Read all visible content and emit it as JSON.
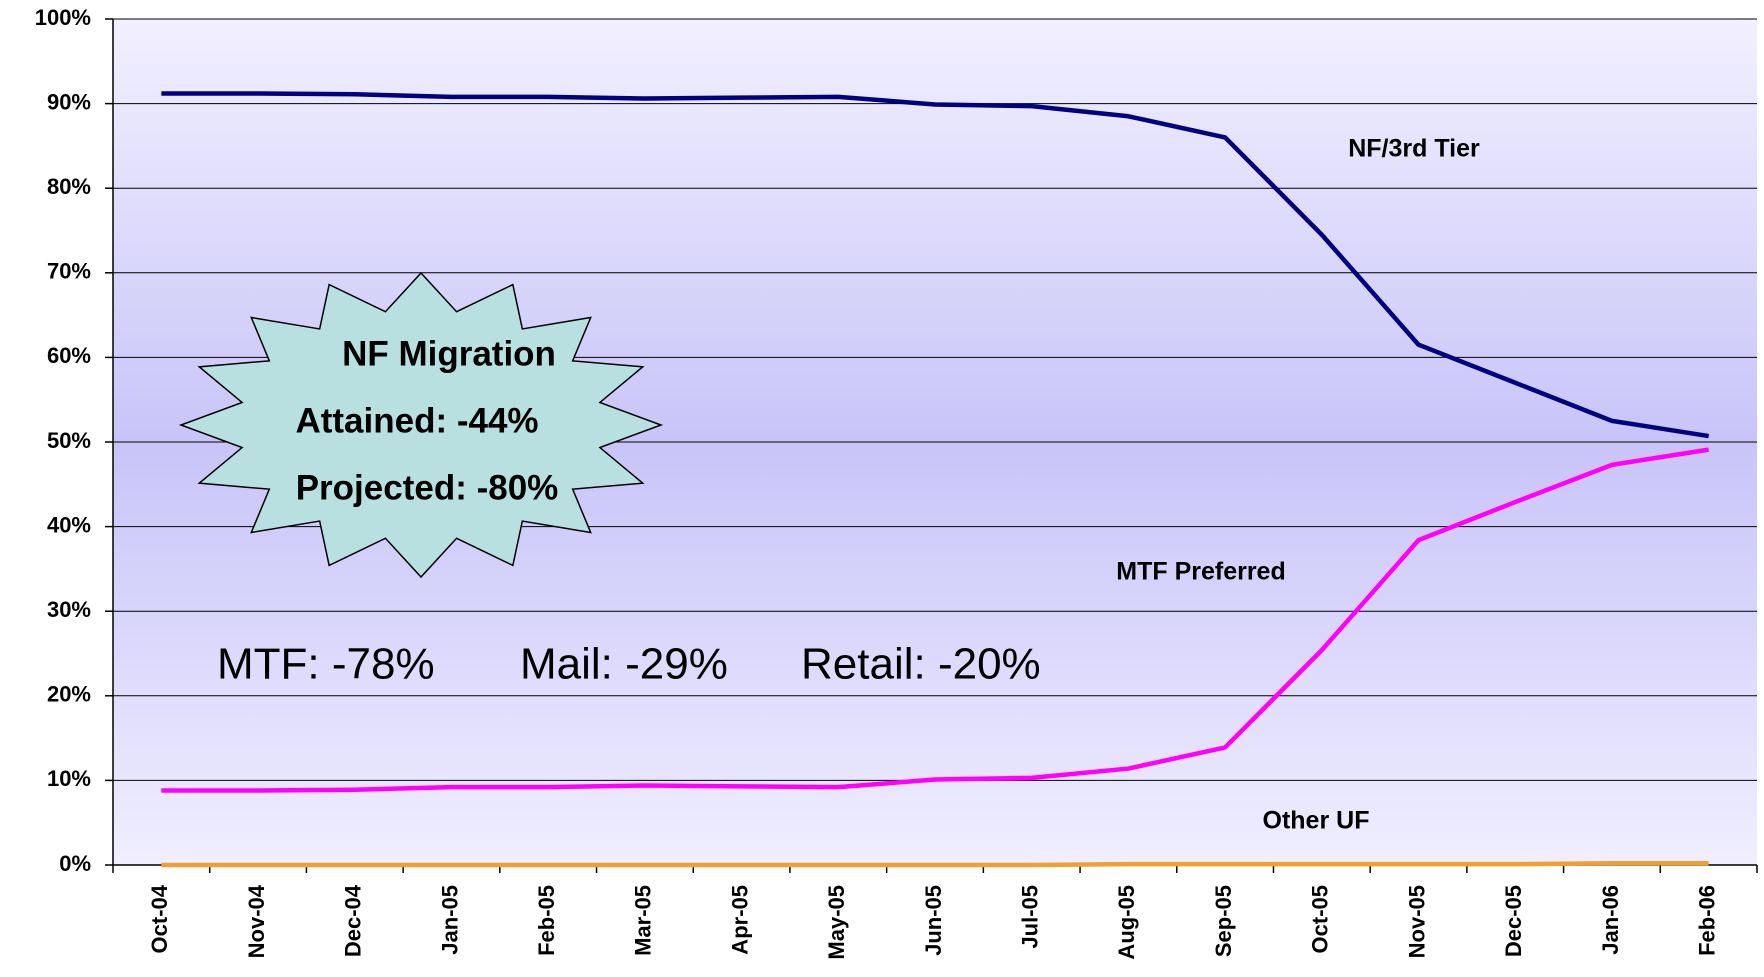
{
  "chart_data": {
    "type": "line",
    "categories": [
      "Oct-04",
      "Nov-04",
      "Dec-04",
      "Jan-05",
      "Feb-05",
      "Mar-05",
      "Apr-05",
      "May-05",
      "Jun-05",
      "Jul-05",
      "Aug-05",
      "Sep-05",
      "Oct-05",
      "Nov-05",
      "Dec-05",
      "Jan-06",
      "Feb-06"
    ],
    "series": [
      {
        "name": "NF/3rd Tier",
        "color": "#000080",
        "values": [
          91.2,
          91.2,
          91.1,
          90.8,
          90.8,
          90.6,
          90.7,
          90.8,
          89.9,
          89.7,
          88.5,
          86.0,
          74.5,
          61.5,
          57.0,
          52.5,
          50.7
        ]
      },
      {
        "name": "MTF Preferred",
        "color": "#ff00ff",
        "values": [
          8.8,
          8.8,
          8.9,
          9.2,
          9.2,
          9.4,
          9.3,
          9.2,
          10.1,
          10.3,
          11.4,
          13.9,
          25.4,
          38.4,
          42.9,
          47.3,
          49.1
        ]
      },
      {
        "name": "Other UF",
        "color": "#f0a030",
        "values": [
          0,
          0,
          0,
          0,
          0,
          0,
          0,
          0,
          0,
          0,
          0.1,
          0.1,
          0.1,
          0.1,
          0.1,
          0.2,
          0.2
        ]
      }
    ],
    "ylim": [
      0,
      100
    ],
    "yticks": [
      {
        "value": 0,
        "label": "0%"
      },
      {
        "value": 10,
        "label": "10%"
      },
      {
        "value": 20,
        "label": "20%"
      },
      {
        "value": 30,
        "label": "30%"
      },
      {
        "value": 40,
        "label": "40%"
      },
      {
        "value": 50,
        "label": "50%"
      },
      {
        "value": 60,
        "label": "60%"
      },
      {
        "value": 70,
        "label": "70%"
      },
      {
        "value": 80,
        "label": "80%"
      },
      {
        "value": 90,
        "label": "90%"
      },
      {
        "value": 100,
        "label": "100%"
      }
    ],
    "grid": true,
    "annotations": {
      "burst": [
        "NF Migration",
        "Attained: -44%",
        "Projected: -80%"
      ],
      "footer": [
        "MTF: -78%",
        "Mail: -29%",
        "Retail: -20%"
      ]
    }
  }
}
